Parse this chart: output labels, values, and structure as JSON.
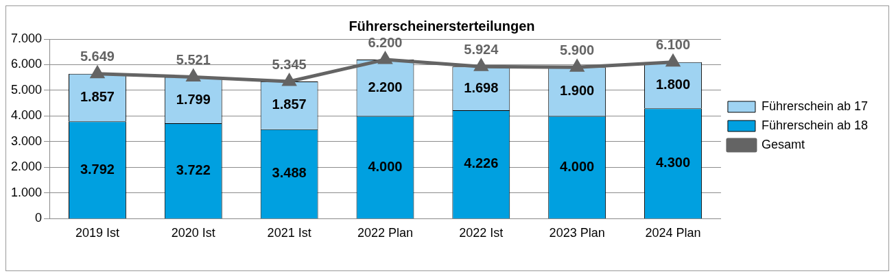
{
  "chart_data": {
    "type": "bar",
    "title": "Führerscheinersterteilungen",
    "categories": [
      "2019 Ist",
      "2020 Ist",
      "2021 Ist",
      "2022 Plan",
      "2022 Ist",
      "2023 Plan",
      "2024 Plan"
    ],
    "stacked": true,
    "series": [
      {
        "name": "Führerschein ab 18",
        "color": "#00a0e0",
        "values": [
          3792,
          3722,
          3488,
          4000,
          4226,
          4000,
          4300
        ],
        "value_labels": [
          "3.792",
          "3.722",
          "3.488",
          "4.000",
          "4.226",
          "4.000",
          "4.300"
        ]
      },
      {
        "name": "Führerschein ab 17",
        "color": "#9fd3f2",
        "values": [
          1857,
          1799,
          1857,
          2200,
          1698,
          1900,
          1800
        ],
        "value_labels": [
          "1.857",
          "1.799",
          "1.857",
          "2.200",
          "1.698",
          "1.900",
          "1.800"
        ]
      },
      {
        "name": "Gesamt",
        "type": "line",
        "color": "#646464",
        "marker": "triangle",
        "values": [
          5649,
          5521,
          5345,
          6200,
          5924,
          5900,
          6100
        ],
        "value_labels": [
          "5.649",
          "5.521",
          "5.345",
          "6.200",
          "5.924",
          "5.900",
          "6.100"
        ]
      }
    ],
    "ylim": [
      0,
      7000
    ],
    "yticks": [
      {
        "value": 0,
        "label": "0"
      },
      {
        "value": 1000,
        "label": "1.000"
      },
      {
        "value": 2000,
        "label": "2.000"
      },
      {
        "value": 3000,
        "label": "3.000"
      },
      {
        "value": 4000,
        "label": "4.000"
      },
      {
        "value": 5000,
        "label": "5.000"
      },
      {
        "value": 6000,
        "label": "6.000"
      },
      {
        "value": 7000,
        "label": "7.000"
      }
    ],
    "grid": "y",
    "legend": "right"
  }
}
